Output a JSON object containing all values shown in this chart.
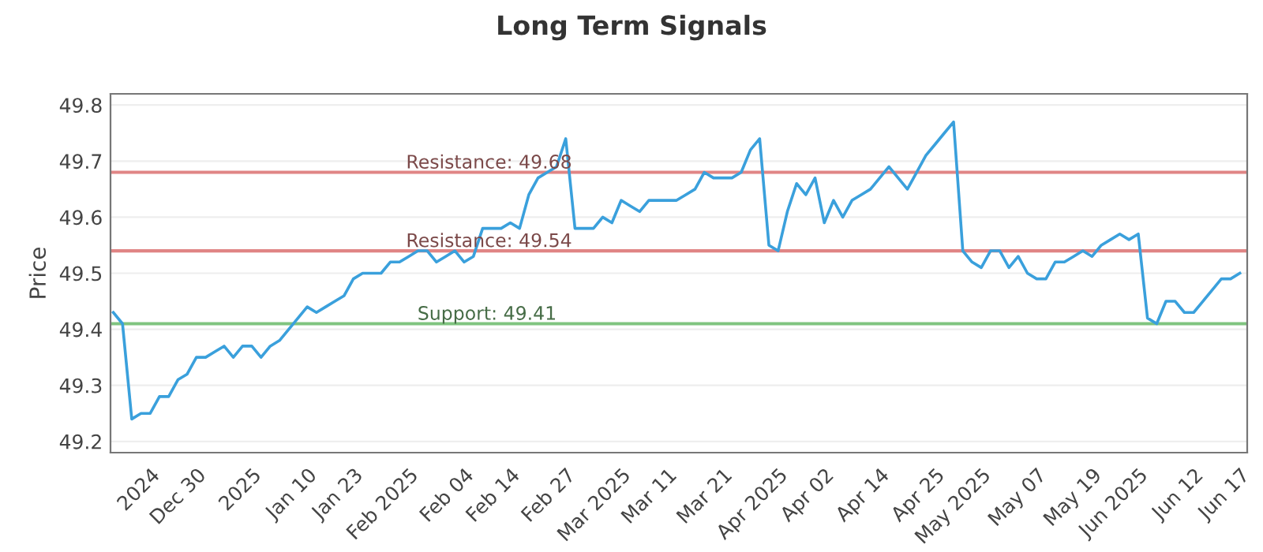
{
  "chart_data": {
    "type": "line",
    "title": "Long Term Signals",
    "ylabel": "Price",
    "categories": [
      null,
      null,
      null,
      null,
      "2024",
      null,
      null,
      null,
      null,
      "Dec 30",
      null,
      null,
      null,
      null,
      null,
      "2025",
      null,
      null,
      null,
      null,
      null,
      "Jan 10",
      null,
      null,
      null,
      null,
      "Jan 23",
      null,
      null,
      null,
      null,
      null,
      "Feb 2025",
      null,
      null,
      null,
      null,
      null,
      "Feb 04",
      null,
      null,
      null,
      null,
      "Feb 14",
      null,
      null,
      null,
      null,
      null,
      "Feb 27",
      null,
      null,
      null,
      null,
      null,
      "Mar 2025",
      null,
      null,
      null,
      null,
      "Mar 11",
      null,
      null,
      null,
      null,
      null,
      "Mar 21",
      null,
      null,
      null,
      null,
      null,
      "Apr 2025",
      null,
      null,
      null,
      null,
      "Apr 02",
      null,
      null,
      null,
      null,
      null,
      "Apr 14",
      null,
      null,
      null,
      null,
      null,
      "Apr 25",
      null,
      null,
      null,
      null,
      "May 2025",
      null,
      null,
      null,
      null,
      null,
      "May 07",
      null,
      null,
      null,
      null,
      null,
      "May 19",
      null,
      null,
      null,
      null,
      "Jun 2025",
      null,
      null,
      null,
      null,
      null,
      "Jun 12",
      null,
      null,
      null,
      null,
      "Jun 17"
    ],
    "series": [
      {
        "color": "#3aa0dc",
        "values": [
          49.43,
          49.41,
          49.24,
          49.25,
          49.25,
          49.28,
          49.28,
          49.31,
          49.32,
          49.35,
          49.35,
          49.36,
          49.37,
          49.35,
          49.37,
          49.37,
          49.35,
          49.37,
          49.38,
          49.4,
          49.42,
          49.44,
          49.43,
          49.44,
          49.45,
          49.46,
          49.49,
          49.5,
          49.5,
          49.5,
          49.52,
          49.52,
          49.53,
          49.54,
          49.54,
          49.52,
          49.53,
          49.54,
          49.52,
          49.53,
          49.58,
          49.58,
          49.58,
          49.59,
          49.58,
          49.64,
          49.67,
          49.68,
          49.69,
          49.74,
          49.58,
          49.58,
          49.58,
          49.6,
          49.59,
          49.63,
          49.62,
          49.61,
          49.63,
          49.63,
          49.63,
          49.63,
          49.64,
          49.65,
          49.68,
          49.67,
          49.67,
          49.67,
          49.68,
          49.72,
          49.74,
          49.55,
          49.54,
          49.61,
          49.66,
          49.64,
          49.67,
          49.59,
          49.63,
          49.6,
          49.63,
          49.64,
          49.65,
          49.67,
          49.69,
          49.67,
          49.65,
          49.68,
          49.71,
          49.73,
          49.75,
          49.77,
          49.54,
          49.52,
          49.51,
          49.54,
          49.54,
          49.51,
          49.53,
          49.5,
          49.49,
          49.49,
          49.52,
          49.52,
          49.53,
          49.54,
          49.53,
          49.55,
          49.56,
          49.57,
          49.56,
          49.57,
          49.42,
          49.41,
          49.45,
          49.45,
          49.43,
          49.43,
          49.45,
          49.47,
          49.49,
          49.49,
          49.5
        ]
      }
    ],
    "ylim": [
      49.18,
      49.82
    ],
    "yticks": [
      49.2,
      49.3,
      49.4,
      49.5,
      49.6,
      49.7,
      49.8
    ],
    "grid": "y",
    "ref_lines": [
      {
        "axis": "y",
        "value": 49.68,
        "label": "Resistance: 49.68",
        "color": "#e08585"
      },
      {
        "axis": "y",
        "value": 49.54,
        "label": "Resistance: 49.54",
        "color": "#e08585"
      },
      {
        "axis": "y",
        "value": 49.41,
        "label": "Support: 49.41",
        "color": "#80c480"
      }
    ]
  }
}
